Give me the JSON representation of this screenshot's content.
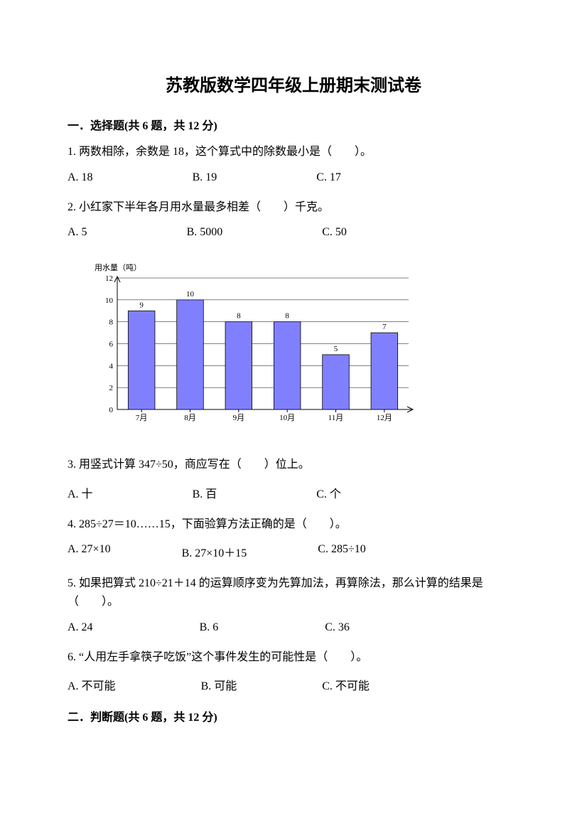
{
  "title": "苏教版数学四年级上册期末测试卷",
  "section1": {
    "header": "一．选择题(共 6 题，共 12 分)",
    "q1": {
      "text": "1. 两数相除，余数是 18，这个算式中的除数最小是（　　）。",
      "a": "A. 18",
      "b": "B. 19",
      "c": "C. 17"
    },
    "q2": {
      "text": "2. 小红家下半年各月用水量最多相差（　　）千克。",
      "a": "A. 5",
      "b": "B. 5000",
      "c": "C. 50"
    },
    "q3": {
      "text": "3. 用竖式计算 347÷50，商应写在（　　）位上。",
      "a": "A. 十",
      "b": "B. 百",
      "c": "C. 个"
    },
    "q4": {
      "text": "4. 285÷27＝10……15，下面验算方法正确的是（　　）。",
      "a": "A. 27×10",
      "b": "B. 27×10＋15",
      "c": "C. 285÷10"
    },
    "q5": {
      "text": "5. 如果把算式 210÷21＋14 的运算顺序变为先算加法，再算除法，那么计算的结果是（　　）。",
      "a": "A. 24",
      "b": "B. 6",
      "c": "C. 36"
    },
    "q6": {
      "text": "6. “人用左手拿筷子吃饭”这个事件发生的可能性是（　　）。",
      "a": "A. 不可能",
      "b": "B. 可能",
      "c": "C. 不可能"
    }
  },
  "section2": {
    "header": "二．判断题(共 6 题，共 12 分)"
  },
  "chart": {
    "type": "bar",
    "y_title": "用水量（吨）",
    "categories": [
      "7月",
      "8月",
      "9月",
      "10月",
      "11月",
      "12月"
    ],
    "values": [
      9,
      10,
      8,
      8,
      5,
      7
    ],
    "bar_color": "#8080ff",
    "bar_border": "#000000",
    "ylim": [
      0,
      12
    ],
    "ytick_step": 2,
    "grid_color": "#000000",
    "background_color": "#ffffff",
    "bar_width": 0.55,
    "label_fontsize": 11
  }
}
